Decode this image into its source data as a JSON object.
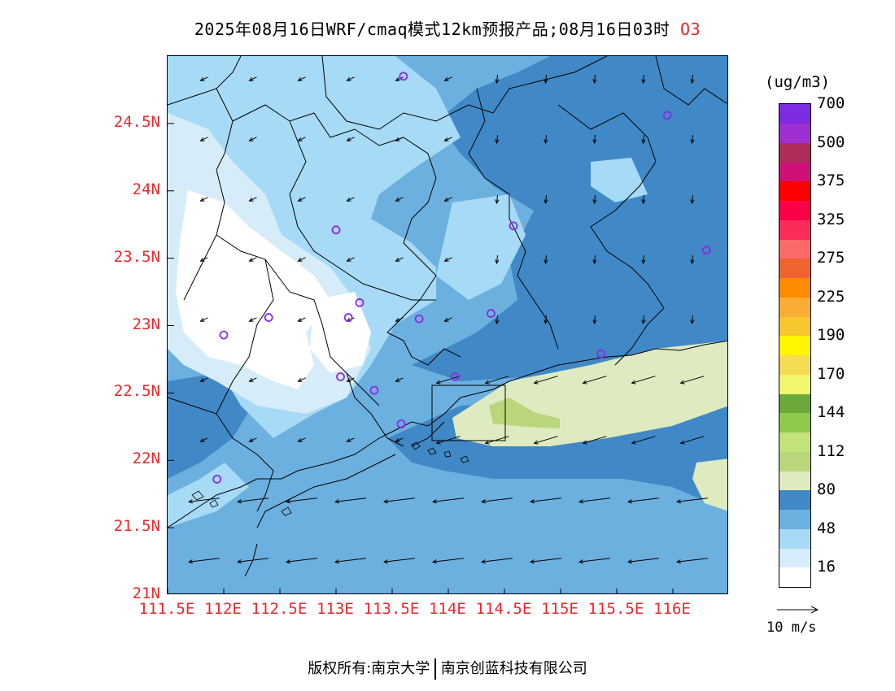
{
  "title": {
    "text": "2025年08月16日WRF/cmaq模式12km预报产品;08月16日03时",
    "pollutant": "O3"
  },
  "map": {
    "lon_range": [
      111.5,
      116.5
    ],
    "lat_range": [
      21.0,
      25.0
    ],
    "y_ticks": [
      "24.5N",
      "24N",
      "23.5N",
      "23N",
      "22.5N",
      "22N",
      "21.5N",
      "21N"
    ],
    "x_ticks": [
      "111.5E",
      "112E",
      "112.5E",
      "113E",
      "113.5E",
      "114E",
      "114.5E",
      "115E",
      "115.5E",
      "116E"
    ],
    "background_color": "#6cb0df",
    "station_marker_color": "#8a2be2",
    "stations": [
      {
        "lon": 113.6,
        "lat": 24.85
      },
      {
        "lon": 115.95,
        "lat": 24.56
      },
      {
        "lon": 113.0,
        "lat": 23.71
      },
      {
        "lon": 114.58,
        "lat": 23.74
      },
      {
        "lon": 116.3,
        "lat": 23.56
      },
      {
        "lon": 113.21,
        "lat": 23.17
      },
      {
        "lon": 112.4,
        "lat": 23.06
      },
      {
        "lon": 113.11,
        "lat": 23.06
      },
      {
        "lon": 113.74,
        "lat": 23.05
      },
      {
        "lon": 114.38,
        "lat": 23.09
      },
      {
        "lon": 112.0,
        "lat": 22.93
      },
      {
        "lon": 115.36,
        "lat": 22.79
      },
      {
        "lon": 113.04,
        "lat": 22.62
      },
      {
        "lon": 114.06,
        "lat": 22.62
      },
      {
        "lon": 113.34,
        "lat": 22.52
      },
      {
        "lon": 113.58,
        "lat": 22.27
      },
      {
        "lon": 111.94,
        "lat": 21.86
      }
    ]
  },
  "colorbar": {
    "unit": "(ug/m3)",
    "colors": [
      "#ffffff",
      "#d6edf9",
      "#a6daf6",
      "#6cb0df",
      "#4089c6",
      "#deebc0",
      "#b9d67a",
      "#c2e27a",
      "#8fc94c",
      "#6aa93a",
      "#f0f66e",
      "#f6dc52",
      "#fff600",
      "#f7c72e",
      "#f9ad35",
      "#fe8a00",
      "#f0632e",
      "#fb6969",
      "#fa2c5a",
      "#fb0048",
      "#ff0000",
      "#d01079",
      "#ae2c59",
      "#9e2fd3",
      "#7d2ce0"
    ],
    "labels": [
      "16",
      "48",
      "80",
      "112",
      "144",
      "170",
      "190",
      "225",
      "275",
      "325",
      "375",
      "500",
      "700"
    ]
  },
  "wind_reference": {
    "label": "10 m/s"
  },
  "footer": {
    "left": "版权所有:南京大学",
    "right": "南京创蓝科技有限公司"
  }
}
